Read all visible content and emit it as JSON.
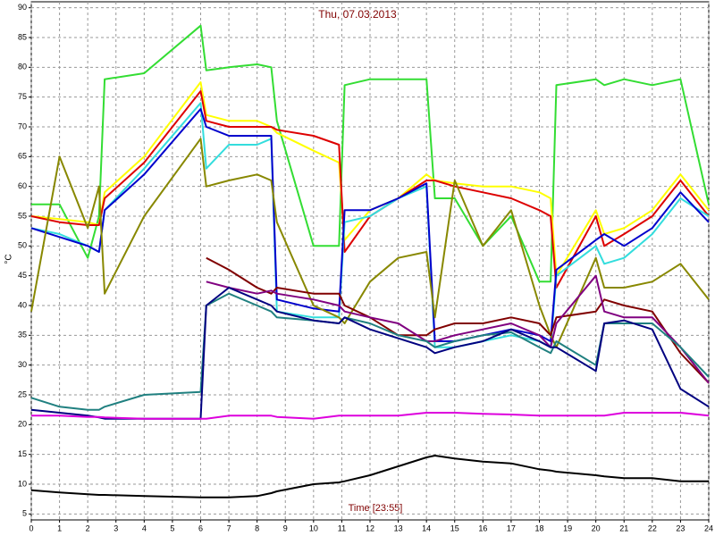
{
  "chart_data": {
    "type": "line",
    "title": "Thu, 07.03.2013",
    "xlabel": "Time [23:55]",
    "ylabel": "°C",
    "x": [
      0,
      1,
      2,
      2.4,
      2.6,
      4,
      6,
      6.2,
      7,
      8,
      8.5,
      8.7,
      10,
      10.9,
      11.1,
      12,
      13,
      14,
      14.3,
      15,
      16,
      17,
      18,
      18.4,
      18.6,
      20,
      20.3,
      21,
      22,
      23,
      24
    ],
    "series": [
      {
        "color": "#33dd33",
        "values": [
          57,
          57,
          48,
          55,
          78,
          79,
          87,
          79.5,
          80,
          80.5,
          80,
          71,
          50,
          50,
          77,
          78,
          78,
          78,
          58,
          58,
          50,
          55,
          44,
          44,
          77,
          78,
          77,
          78,
          77,
          78,
          57
        ]
      },
      {
        "color": "#ffff00",
        "values": [
          55,
          54.5,
          54,
          53.5,
          59,
          65,
          77.5,
          72,
          71,
          71,
          70,
          69,
          66,
          64,
          51,
          56,
          58,
          62,
          61,
          60.5,
          60,
          60,
          59,
          58,
          45,
          56,
          52,
          53,
          56,
          62,
          56
        ]
      },
      {
        "color": "#dd0000",
        "values": [
          55,
          54,
          53.5,
          53.5,
          58,
          64,
          76,
          71,
          70,
          70,
          70,
          69.5,
          68.5,
          67,
          49,
          55,
          58,
          61,
          61,
          60,
          59,
          58,
          56,
          55,
          43,
          55,
          50,
          52,
          55,
          61,
          55
        ]
      },
      {
        "color": "#33dddd",
        "values": [
          53,
          52,
          50,
          49,
          56,
          63,
          74,
          63,
          67,
          67,
          68,
          39,
          38,
          38,
          54,
          55,
          58,
          60,
          33,
          33,
          34,
          35,
          34,
          33,
          45,
          50,
          47,
          48,
          52,
          58,
          55
        ]
      },
      {
        "color": "#0000cc",
        "values": [
          53,
          51.5,
          50,
          49,
          56,
          62,
          73,
          70,
          68.5,
          68.5,
          68.5,
          41,
          39.5,
          39,
          56,
          56,
          58,
          60.5,
          34,
          34,
          35,
          36,
          35,
          34,
          46,
          51,
          52,
          50,
          53,
          59,
          54
        ]
      },
      {
        "color": "#888800",
        "values": [
          39,
          65,
          53,
          60,
          42,
          55,
          68,
          60,
          61,
          62,
          61,
          54,
          40,
          38,
          37,
          44,
          48,
          49,
          38,
          61,
          50,
          56,
          40,
          35,
          33,
          48,
          43,
          43,
          44,
          47,
          41
        ]
      },
      {
        "color": "#800000",
        "values": [
          null,
          null,
          null,
          null,
          null,
          null,
          null,
          48,
          46,
          43,
          42,
          43,
          42,
          42,
          40,
          38,
          35,
          35,
          36,
          37,
          37,
          38,
          37,
          35,
          38,
          39,
          41,
          40,
          39,
          32,
          27
        ]
      },
      {
        "color": "#800080",
        "values": [
          null,
          null,
          null,
          null,
          null,
          null,
          null,
          44,
          43,
          42,
          42.5,
          42,
          41,
          40,
          39,
          38,
          37,
          34,
          34,
          35,
          36,
          37,
          35,
          33,
          37,
          45,
          39,
          38,
          38,
          33,
          27
        ]
      },
      {
        "color": "#208080",
        "values": [
          24.5,
          23,
          22.5,
          22.5,
          23,
          25,
          25.5,
          40,
          42,
          40,
          39,
          38,
          37.5,
          37,
          38,
          37,
          35,
          34,
          33,
          34,
          35,
          35.5,
          33,
          32,
          34,
          30,
          37,
          37,
          37,
          33,
          28
        ]
      },
      {
        "color": "#000080",
        "values": [
          22.5,
          22,
          21.5,
          21.2,
          21,
          21,
          21,
          40,
          43,
          41,
          40,
          39,
          37.5,
          37,
          38,
          36,
          34.5,
          33,
          32,
          33,
          34,
          36,
          34,
          33,
          33,
          29,
          37,
          37.5,
          36,
          26,
          23
        ]
      },
      {
        "color": "#dd00dd",
        "values": [
          21.5,
          21.5,
          21.3,
          21.3,
          21.2,
          21,
          21,
          21,
          21.5,
          21.5,
          21.5,
          21.3,
          21,
          21.5,
          21.5,
          21.5,
          21.5,
          22,
          22,
          22,
          21.8,
          21.7,
          21.5,
          21.5,
          21.5,
          21.5,
          21.5,
          22,
          22,
          22,
          21.5
        ]
      },
      {
        "color": "#000000",
        "values": [
          9,
          8.6,
          8.3,
          8.2,
          8.2,
          8,
          7.8,
          7.8,
          7.8,
          8,
          8.5,
          8.8,
          10,
          10.3,
          10.5,
          11.5,
          13,
          14.5,
          14.8,
          14.3,
          13.8,
          13.5,
          12.5,
          12.3,
          12.1,
          11.5,
          11.3,
          11,
          11,
          10.5,
          10.5
        ]
      }
    ],
    "xlim": [
      0,
      24
    ],
    "xticks": [
      0,
      1,
      2,
      3,
      4,
      5,
      6,
      7,
      8,
      9,
      10,
      11,
      12,
      13,
      14,
      15,
      16,
      17,
      18,
      19,
      20,
      21,
      22,
      23,
      24
    ],
    "ylim": [
      4,
      91
    ],
    "yticks": [
      5,
      10,
      15,
      20,
      25,
      30,
      35,
      40,
      45,
      50,
      55,
      60,
      65,
      70,
      75,
      80,
      85,
      90
    ],
    "grid": true
  }
}
